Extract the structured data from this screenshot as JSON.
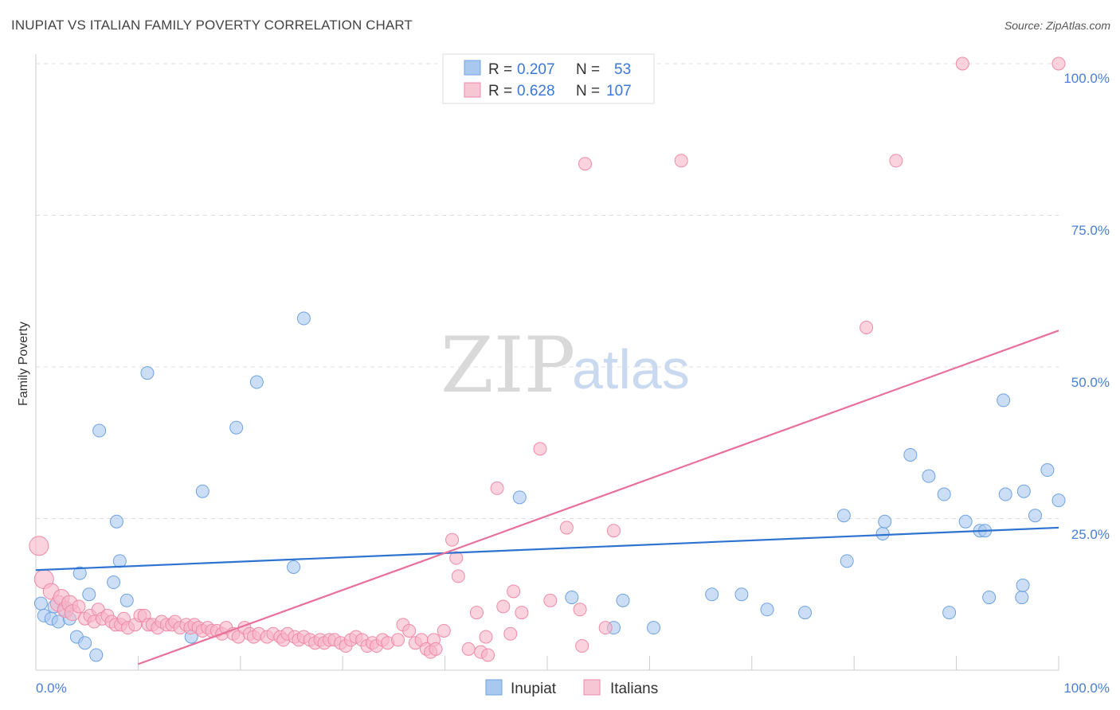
{
  "title": "INUPIAT VS ITALIAN FAMILY POVERTY CORRELATION CHART",
  "source": "Source: ZipAtlas.com",
  "watermark": {
    "part1": "ZIP",
    "part2": "atlas"
  },
  "legend": {
    "rows": [
      {
        "r_label": "R =",
        "r_value": "0.207",
        "n_label": "N =",
        "n_value": "53",
        "color": "#a8c8f0"
      },
      {
        "r_label": "R =",
        "r_value": "0.628",
        "n_label": "N =",
        "n_value": "107",
        "color": "#f7b6c8"
      }
    ]
  },
  "chart_data": {
    "type": "scatter",
    "title": "INUPIAT VS ITALIAN FAMILY POVERTY CORRELATION CHART",
    "xlabel": "",
    "ylabel": "Family Poverty",
    "xlim": [
      0,
      100
    ],
    "ylim": [
      0,
      100
    ],
    "x_tick_labels": [
      "0.0%",
      "100.0%"
    ],
    "y_ticks": [
      25,
      50,
      75,
      100
    ],
    "y_tick_labels": [
      "25.0%",
      "50.0%",
      "75.0%",
      "100.0%"
    ],
    "grid": true,
    "legend_position": "top-center",
    "series": [
      {
        "name": "Inupiat",
        "color": "#6fa3e0",
        "fill": "#a8c8f0",
        "trend": {
          "x": [
            0,
            100
          ],
          "y": [
            16.5,
            23.5
          ],
          "color": "#2f73d0"
        },
        "points": [
          [
            0.5,
            11
          ],
          [
            0.8,
            9
          ],
          [
            1.5,
            8.5
          ],
          [
            1.8,
            10.5
          ],
          [
            2.2,
            8
          ],
          [
            2.8,
            10
          ],
          [
            3.3,
            8.5
          ],
          [
            4,
            5.5
          ],
          [
            4.3,
            16
          ],
          [
            4.8,
            4.5
          ],
          [
            5.2,
            12.5
          ],
          [
            5.9,
            2.5
          ],
          [
            6.2,
            39.5
          ],
          [
            7.6,
            14.5
          ],
          [
            7.9,
            24.5
          ],
          [
            8.2,
            18
          ],
          [
            8.9,
            11.5
          ],
          [
            10.9,
            49
          ],
          [
            15.2,
            5.5
          ],
          [
            16.3,
            29.5
          ],
          [
            19.6,
            40
          ],
          [
            21.6,
            47.5
          ],
          [
            25.2,
            17
          ],
          [
            26.2,
            58
          ],
          [
            47.3,
            28.5
          ],
          [
            52.4,
            12
          ],
          [
            56.5,
            7
          ],
          [
            57.4,
            11.5
          ],
          [
            60.4,
            7
          ],
          [
            66.1,
            12.5
          ],
          [
            69,
            12.5
          ],
          [
            71.5,
            10
          ],
          [
            75.2,
            9.5
          ],
          [
            79,
            25.5
          ],
          [
            79.3,
            18
          ],
          [
            82.8,
            22.5
          ],
          [
            83,
            24.5
          ],
          [
            85.5,
            35.5
          ],
          [
            87.3,
            32
          ],
          [
            88.8,
            29
          ],
          [
            89.3,
            9.5
          ],
          [
            90.9,
            24.5
          ],
          [
            92.3,
            23
          ],
          [
            92.8,
            23
          ],
          [
            93.2,
            12
          ],
          [
            94.6,
            44.5
          ],
          [
            94.8,
            29
          ],
          [
            96.4,
            12
          ],
          [
            96.5,
            14
          ],
          [
            96.6,
            29.5
          ],
          [
            97.7,
            25.5
          ],
          [
            98.9,
            33
          ],
          [
            100,
            28
          ]
        ]
      },
      {
        "name": "Italians",
        "color": "#ee8aa8",
        "fill": "#f7b6c8",
        "trend": {
          "x": [
            10,
            100
          ],
          "y": [
            1,
            56
          ],
          "color": "#e8709a"
        },
        "points": [
          [
            0.3,
            20.5
          ],
          [
            0.8,
            15
          ],
          [
            1.5,
            13
          ],
          [
            2.2,
            11
          ],
          [
            2.5,
            12
          ],
          [
            2.9,
            10
          ],
          [
            3.3,
            11
          ],
          [
            3.6,
            9.5
          ],
          [
            4.2,
            10.5
          ],
          [
            4.8,
            8.5
          ],
          [
            5.3,
            9
          ],
          [
            5.7,
            8
          ],
          [
            6.1,
            10
          ],
          [
            6.5,
            8.5
          ],
          [
            7,
            9
          ],
          [
            7.4,
            8
          ],
          [
            7.8,
            7.5
          ],
          [
            8.3,
            7.5
          ],
          [
            8.6,
            8.5
          ],
          [
            9,
            7
          ],
          [
            9.7,
            7.5
          ],
          [
            10.2,
            9
          ],
          [
            10.6,
            9
          ],
          [
            11,
            7.5
          ],
          [
            11.4,
            7.5
          ],
          [
            11.9,
            7
          ],
          [
            12.3,
            8
          ],
          [
            12.8,
            7.5
          ],
          [
            13.3,
            7.5
          ],
          [
            13.6,
            8
          ],
          [
            14.1,
            7
          ],
          [
            14.7,
            7.5
          ],
          [
            15.1,
            7
          ],
          [
            15.5,
            7.5
          ],
          [
            15.9,
            7
          ],
          [
            16.3,
            6.5
          ],
          [
            16.8,
            7
          ],
          [
            17.2,
            6.5
          ],
          [
            17.7,
            6.5
          ],
          [
            18.2,
            6
          ],
          [
            18.6,
            7
          ],
          [
            19.3,
            6
          ],
          [
            19.8,
            5.5
          ],
          [
            20.4,
            7
          ],
          [
            20.9,
            6
          ],
          [
            21.3,
            5.5
          ],
          [
            21.8,
            6
          ],
          [
            22.6,
            5.5
          ],
          [
            23.2,
            6
          ],
          [
            23.9,
            5.5
          ],
          [
            24.2,
            5
          ],
          [
            24.6,
            6
          ],
          [
            25.3,
            5.5
          ],
          [
            25.7,
            5
          ],
          [
            26.2,
            5.5
          ],
          [
            26.8,
            5
          ],
          [
            27.3,
            4.5
          ],
          [
            27.8,
            5
          ],
          [
            28.2,
            4.5
          ],
          [
            28.7,
            5
          ],
          [
            29.2,
            5
          ],
          [
            29.8,
            4.5
          ],
          [
            30.3,
            4
          ],
          [
            30.8,
            5
          ],
          [
            31.3,
            5.5
          ],
          [
            31.9,
            5
          ],
          [
            32.4,
            4
          ],
          [
            32.9,
            4.5
          ],
          [
            33.3,
            4
          ],
          [
            33.9,
            5
          ],
          [
            34.4,
            4.5
          ],
          [
            35.4,
            5
          ],
          [
            35.9,
            7.5
          ],
          [
            36.5,
            6.5
          ],
          [
            37.1,
            4.5
          ],
          [
            37.7,
            5
          ],
          [
            38.2,
            3.5
          ],
          [
            38.6,
            3
          ],
          [
            38.9,
            5
          ],
          [
            39.1,
            3.5
          ],
          [
            39.9,
            6.5
          ],
          [
            40.7,
            21.5
          ],
          [
            41.1,
            18.5
          ],
          [
            41.3,
            15.5
          ],
          [
            42.3,
            3.5
          ],
          [
            43.1,
            9.5
          ],
          [
            43.5,
            3
          ],
          [
            44,
            5.5
          ],
          [
            44.2,
            2.5
          ],
          [
            45.1,
            30
          ],
          [
            45.7,
            10.5
          ],
          [
            46.4,
            6
          ],
          [
            46.7,
            13
          ],
          [
            47.5,
            9.5
          ],
          [
            49.3,
            36.5
          ],
          [
            50.3,
            11.5
          ],
          [
            51.9,
            23.5
          ],
          [
            53.2,
            10
          ],
          [
            53.4,
            4
          ],
          [
            53.7,
            83.5
          ],
          [
            55.7,
            7
          ],
          [
            56.5,
            23
          ],
          [
            63.1,
            84
          ],
          [
            84.1,
            84
          ],
          [
            81.2,
            56.5
          ],
          [
            90.6,
            100
          ],
          [
            100,
            100
          ]
        ]
      }
    ]
  }
}
